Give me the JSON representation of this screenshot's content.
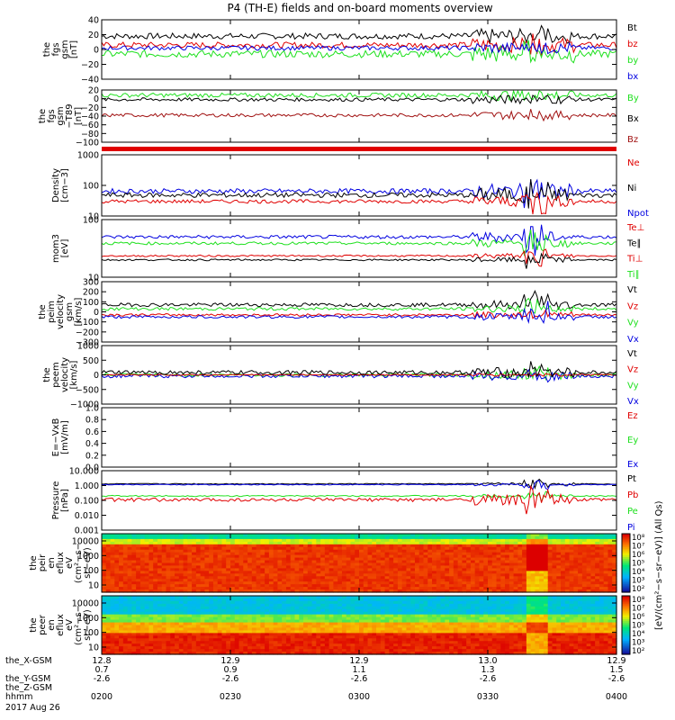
{
  "title": "P4 (TH-E) fields and on-board moments overview",
  "colors": {
    "black": "#000000",
    "red": "#e00000",
    "green": "#1ee01e",
    "blue": "#0000e0",
    "darkred": "#a01010"
  },
  "footer": {
    "rows": [
      {
        "label": "the_X-GSM",
        "values": [
          "12.8",
          "12.9",
          "12.9",
          "13.0",
          "12.9"
        ]
      },
      {
        "label": "",
        "values": [
          "0.7",
          "0.9",
          "1.1",
          "1.3",
          "1.5"
        ]
      },
      {
        "label": "the_Y-GSM",
        "values": [
          "-2.6",
          "-2.6",
          "-2.6",
          "-2.6",
          "-2.6"
        ]
      },
      {
        "label": "the_Z-GSM",
        "values": [
          "",
          "",
          "",
          "",
          ""
        ]
      },
      {
        "label": "hhmm",
        "values": [
          "0200",
          "0230",
          "0300",
          "0330",
          "0400"
        ]
      }
    ],
    "date": "2017 Aug 26"
  },
  "chart_data": [
    {
      "type": "line",
      "id": "fgs",
      "ylabel_lines": [
        "the",
        "fgs",
        "gsm",
        "[nT]"
      ],
      "yticks": [
        "40",
        "20",
        "0",
        "−20",
        "−40"
      ],
      "legend": [
        {
          "name": "Bt",
          "color": "black"
        },
        {
          "name": "bz",
          "color": "red"
        },
        {
          "name": "by",
          "color": "green"
        },
        {
          "name": "bx",
          "color": "blue"
        }
      ],
      "ylim": [
        -40,
        40
      ],
      "series": [
        {
          "name": "Bt",
          "color": "black",
          "base": 18,
          "noise": 4,
          "spike": 20
        },
        {
          "name": "bz",
          "color": "red",
          "base": 6,
          "noise": 4,
          "spike": 18
        },
        {
          "name": "by",
          "color": "green",
          "base": -6,
          "noise": 5,
          "spike": 15
        },
        {
          "name": "bx",
          "color": "blue",
          "base": 2,
          "noise": 3,
          "spike": 12
        }
      ]
    },
    {
      "type": "line",
      "id": "fgs-model",
      "ylabel_lines": [
        "the",
        "fgs",
        "gsm",
        "−T89",
        "[nT]"
      ],
      "yticks": [
        "20",
        "0",
        "−20",
        "−40",
        "−60",
        "−80",
        "−100"
      ],
      "legend": [
        {
          "name": "By",
          "color": "green"
        },
        {
          "name": "Bx",
          "color": "black"
        },
        {
          "name": "Bz",
          "color": "darkred"
        }
      ],
      "ylim": [
        -100,
        20
      ],
      "series": [
        {
          "name": "By",
          "color": "green",
          "base": 8,
          "noise": 5,
          "spike": 10
        },
        {
          "name": "Bx",
          "color": "black",
          "base": -2,
          "noise": 4,
          "spike": 10
        },
        {
          "name": "Bz",
          "color": "darkred",
          "base": -38,
          "noise": 4,
          "spike": 14
        }
      ]
    },
    {
      "type": "bar",
      "id": "flag",
      "ylabel_lines": [],
      "yticks": [],
      "legend": []
    },
    {
      "type": "line",
      "id": "density",
      "ylabel_lines": [
        "Density",
        "[cm−3]"
      ],
      "yticks": [
        "1000",
        "100",
        "10"
      ],
      "log": true,
      "ylim": [
        10,
        1000
      ],
      "legend": [
        {
          "name": "Ne",
          "color": "red"
        },
        {
          "name": "Ni",
          "color": "black"
        },
        {
          "name": "Npot",
          "color": "blue"
        }
      ],
      "series": [
        {
          "name": "Npot",
          "color": "blue",
          "base": 65,
          "noise": 0.08,
          "spike": 0.4
        },
        {
          "name": "Ni",
          "color": "black",
          "base": 48,
          "noise": 0.08,
          "spike": 0.4
        },
        {
          "name": "Ne",
          "color": "red",
          "base": 30,
          "noise": 0.06,
          "spike": 0.4
        }
      ]
    },
    {
      "type": "line",
      "id": "temp",
      "ylabel_lines": [
        "mom3",
        "[eV]"
      ],
      "yticks": [
        "100",
        "10"
      ],
      "log": true,
      "ylim": [
        10,
        1000
      ],
      "legend": [
        {
          "name": "Te⊥",
          "color": "red"
        },
        {
          "name": "Te∥",
          "color": "black"
        },
        {
          "name": "Ti⊥",
          "color": "red"
        },
        {
          "name": "Ti∥",
          "color": "green"
        }
      ],
      "series": [
        {
          "name": "Ti",
          "color": "blue",
          "base": 250,
          "noise": 0.06,
          "spike": 0.5
        },
        {
          "name": "Ti2",
          "color": "green",
          "base": 150,
          "noise": 0.05,
          "spike": 0.4
        },
        {
          "name": "Te",
          "color": "red",
          "base": 55,
          "noise": 0.03,
          "spike": 0.3
        },
        {
          "name": "Te2",
          "color": "black",
          "base": 40,
          "noise": 0.03,
          "spike": 0.3
        }
      ]
    },
    {
      "type": "line",
      "id": "peim",
      "ylabel_lines": [
        "the",
        "peim",
        "velocity",
        "gsm",
        "[km/s]"
      ],
      "yticks": [
        "300",
        "200",
        "100",
        "0",
        "−100",
        "−200",
        "−300"
      ],
      "legend": [
        {
          "name": "Vt",
          "color": "black"
        },
        {
          "name": "Vz",
          "color": "red"
        },
        {
          "name": "Vy",
          "color": "green"
        },
        {
          "name": "Vx",
          "color": "blue"
        }
      ],
      "ylim": [
        -300,
        300
      ],
      "series": [
        {
          "name": "Vt",
          "color": "black",
          "base": 70,
          "noise": 18,
          "spike": 180
        },
        {
          "name": "Vy",
          "color": "green",
          "base": 30,
          "noise": 15,
          "spike": 120
        },
        {
          "name": "Vz",
          "color": "red",
          "base": -30,
          "noise": 12,
          "spike": 90
        },
        {
          "name": "Vx",
          "color": "blue",
          "base": -50,
          "noise": 14,
          "spike": 200
        }
      ]
    },
    {
      "type": "line",
      "id": "peem",
      "ylabel_lines": [
        "the",
        "peem",
        "velocity",
        "[km/s]"
      ],
      "yticks": [
        "1000",
        "500",
        "0",
        "−500",
        "−1000"
      ],
      "legend": [
        {
          "name": "Vt",
          "color": "black"
        },
        {
          "name": "Vz",
          "color": "red"
        },
        {
          "name": "Vy",
          "color": "green"
        },
        {
          "name": "Vx",
          "color": "blue"
        }
      ],
      "ylim": [
        -1000,
        1000
      ],
      "series": [
        {
          "name": "Vy",
          "color": "green",
          "base": 0,
          "noise": 60,
          "spike": 250
        },
        {
          "name": "Vx",
          "color": "blue",
          "base": -40,
          "noise": 60,
          "spike": 300
        },
        {
          "name": "Vz",
          "color": "red",
          "base": 0,
          "noise": 20,
          "spike": 60
        },
        {
          "name": "Vt",
          "color": "black",
          "base": 80,
          "noise": 70,
          "spike": 450
        }
      ]
    },
    {
      "type": "line",
      "id": "efield",
      "ylabel_lines": [
        "E=−VxB",
        "[mV/m]"
      ],
      "yticks": [
        "1.0",
        "0.8",
        "0.6",
        "0.4",
        "0.2",
        "0.0"
      ],
      "legend": [
        {
          "name": "Ez",
          "color": "red"
        },
        {
          "name": "Ey",
          "color": "green"
        },
        {
          "name": "Ex",
          "color": "blue"
        }
      ],
      "ylim": [
        0,
        1
      ],
      "series": []
    },
    {
      "type": "line",
      "id": "pressure",
      "ylabel_lines": [
        "Pressure",
        "[nPa]"
      ],
      "yticks": [
        "10.000",
        "1.000",
        "0.100",
        "0.010",
        "0.001"
      ],
      "log": true,
      "ylim": [
        0.001,
        10
      ],
      "legend": [
        {
          "name": "Pt",
          "color": "black"
        },
        {
          "name": "Pb",
          "color": "red"
        },
        {
          "name": "Pe",
          "color": "green"
        },
        {
          "name": "Pi",
          "color": "blue"
        }
      ],
      "series": [
        {
          "name": "Pt",
          "color": "black",
          "base": 1.3,
          "noise": 0.03,
          "spike": 0.3
        },
        {
          "name": "Pi",
          "color": "blue",
          "base": 1.15,
          "noise": 0.03,
          "spike": 0.3
        },
        {
          "name": "Pe",
          "color": "green",
          "base": 0.2,
          "noise": 0.04,
          "spike": 0.3
        },
        {
          "name": "Pb",
          "color": "red",
          "base": 0.11,
          "noise": 0.12,
          "spike": 0.8
        }
      ]
    },
    {
      "type": "heatmap",
      "id": "peir",
      "ylabel_lines": [
        "the",
        "peir",
        "en",
        "eflux",
        "eV",
        "(cm²−s−",
        "sr−eV)"
      ],
      "yticks": [
        "10000",
        "1000",
        "100",
        "10"
      ],
      "colorbar_ticks": [
        "10⁸",
        "10⁷",
        "10⁶",
        "10⁵",
        "10⁴",
        "10³",
        "10²"
      ]
    },
    {
      "type": "heatmap",
      "id": "peer",
      "ylabel_lines": [
        "the",
        "peer",
        "en",
        "eflux",
        "eV",
        "(cm²−s−",
        "sr−eV)"
      ],
      "yticks": [
        "10000",
        "1000",
        "100",
        "10"
      ],
      "colorbar_ticks": [
        "10⁸",
        "10⁷",
        "10⁶",
        "10⁵",
        "10⁴",
        "10³",
        "10²"
      ]
    }
  ],
  "colorbar_label": "[eV/(cm²−s−sr−eV)] (All Qs)"
}
